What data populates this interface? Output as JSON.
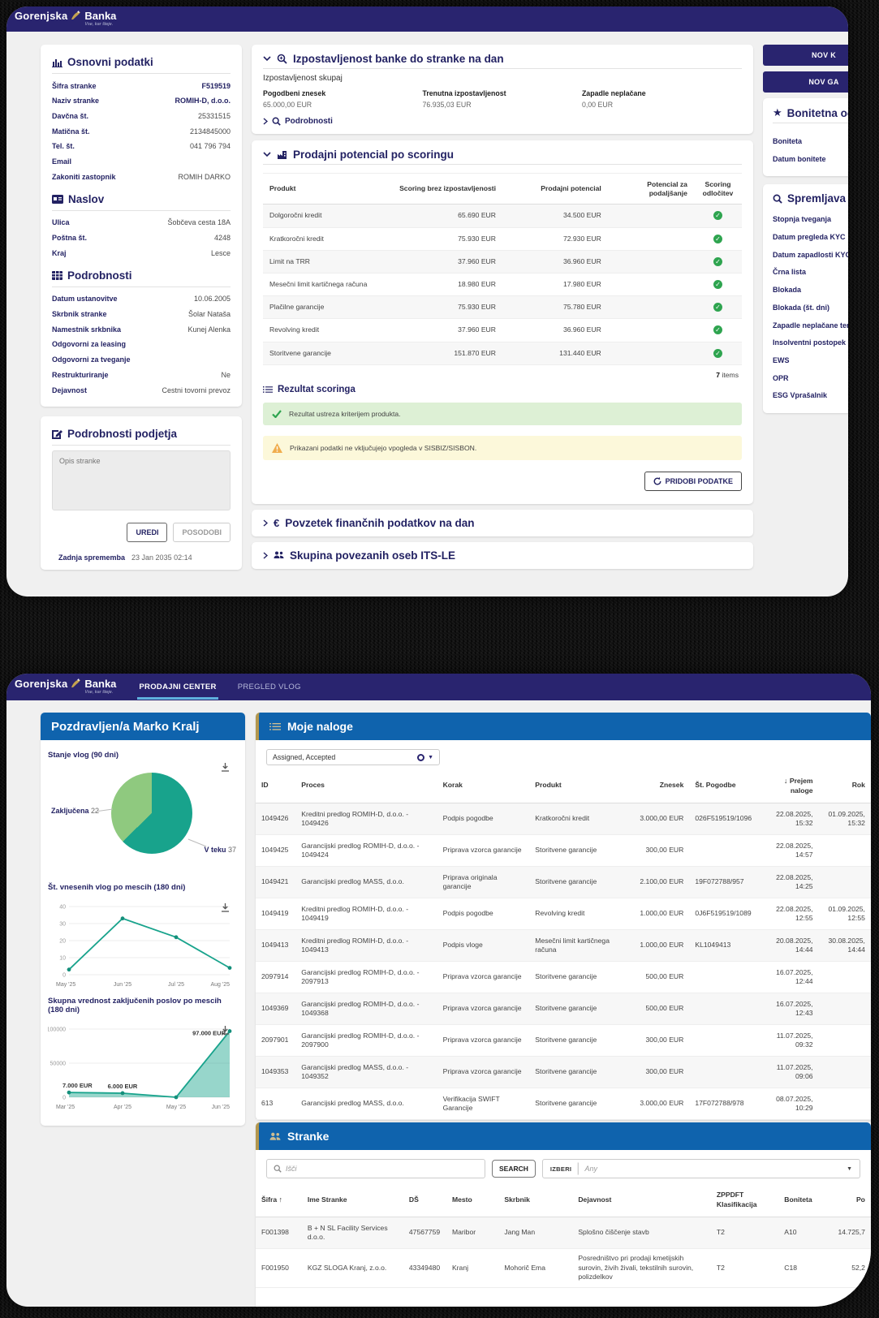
{
  "colors": {
    "navy": "#29246f",
    "heading": "#232263",
    "blue_header": "#0f63ad",
    "gold": "#b3974e",
    "teal": "#18a38c",
    "green": "#8fc97f",
    "success_bg": "#ddf0d5",
    "warning_bg": "#fcf8da",
    "check_green": "#2ea44f"
  },
  "brand": {
    "name1": "Gorenjska",
    "name2": "Banka",
    "tagline": "Vse, kar šteje."
  },
  "app1": {
    "osnovni": {
      "title": "Osnovni podatki",
      "fields": [
        {
          "l": "Šifra stranke",
          "v": "F519519",
          "b": true
        },
        {
          "l": "Naziv stranke",
          "v": "ROMIH-D, d.o.o.",
          "b": true
        },
        {
          "l": "Davčna št.",
          "v": "25331515"
        },
        {
          "l": "Matična št.",
          "v": "2134845000"
        },
        {
          "l": "Tel. št.",
          "v": "041 796 794"
        },
        {
          "l": "Email",
          "v": ""
        },
        {
          "l": "Zakoniti zastopnik",
          "v": "ROMIH DARKO"
        }
      ]
    },
    "naslov": {
      "title": "Naslov",
      "fields": [
        {
          "l": "Ulica",
          "v": "Šobčeva cesta 18A"
        },
        {
          "l": "Poštna št.",
          "v": "4248"
        },
        {
          "l": "Kraj",
          "v": "Lesce"
        }
      ]
    },
    "podrobnosti": {
      "title": "Podrobnosti",
      "fields": [
        {
          "l": "Datum ustanovitve",
          "v": "10.06.2005"
        },
        {
          "l": "Skrbnik stranke",
          "v": "Šolar Nataša"
        },
        {
          "l": "Namestnik srkbnika",
          "v": "Kunej Alenka"
        },
        {
          "l": "Odgovorni za leasing",
          "v": ""
        },
        {
          "l": "Odgovorni za tveganje",
          "v": ""
        },
        {
          "l": "Restrukturiranje",
          "v": "Ne"
        },
        {
          "l": "Dejavnost",
          "v": "Cestni tovorni prevoz"
        }
      ]
    },
    "podjetje": {
      "title": "Podrobnosti podjetja",
      "placeholder": "Opis stranke",
      "uredi": "UREDI",
      "posodobi": "POSODOBI",
      "zadnja_label": "Zadnja sprememba",
      "zadnja_value": "23 Jan 2035 02:14"
    },
    "izpostavljenost": {
      "title": "Izpostavljenost banke do stranke na dan",
      "subtitle": "Izpostavljenost skupaj",
      "stats": [
        {
          "label": "Pogodbeni znesek",
          "value": "65.000,00 EUR"
        },
        {
          "label": "Trenutna izpostavljenost",
          "value": "76.935,03 EUR"
        },
        {
          "label": "Zapadle neplačane",
          "value": "0,00 EUR"
        }
      ],
      "link": "Podrobnosti"
    },
    "scoring": {
      "title": "Prodajni potencial po scoringu",
      "headers": [
        "Produkt",
        "Scoring brez izpostavljenosti",
        "Prodajni potencial",
        "Potencial za podaljšanje",
        "Scoring odločitev"
      ],
      "rows": [
        {
          "produkt": "Dolgoročni kredit",
          "scoring": "65.690 EUR",
          "potencial": "34.500 EUR",
          "podaljsanje": "",
          "ok": true
        },
        {
          "produkt": "Kratkoročni kredit",
          "scoring": "75.930 EUR",
          "potencial": "72.930 EUR",
          "podaljsanje": "",
          "ok": true
        },
        {
          "produkt": "Limit na TRR",
          "scoring": "37.960 EUR",
          "potencial": "36.960 EUR",
          "podaljsanje": "",
          "ok": true
        },
        {
          "produkt": "Mesečni limit kartičnega računa",
          "scoring": "18.980 EUR",
          "potencial": "17.980 EUR",
          "podaljsanje": "",
          "ok": true
        },
        {
          "produkt": "Plačilne garancije",
          "scoring": "75.930 EUR",
          "potencial": "75.780 EUR",
          "podaljsanje": "",
          "ok": true
        },
        {
          "produkt": "Revolving kredit",
          "scoring": "37.960 EUR",
          "potencial": "36.960 EUR",
          "podaljsanje": "",
          "ok": true
        },
        {
          "produkt": "Storitvene garancije",
          "scoring": "151.870 EUR",
          "potencial": "131.440 EUR",
          "podaljsanje": "",
          "ok": true
        }
      ],
      "items_count": "7",
      "items_label": " items",
      "rezultat_title": "Rezultat scoringa",
      "success": "Rezultat ustreza kriterijem produkta.",
      "warning": "Prikazani podatki ne vključujejo vpogleda v SISBIZ/SISBON.",
      "button": "PRIDOBI PODATKE"
    },
    "povzetek_title": "Povzetek finančnih podatkov na dan",
    "skupina_title": "Skupina povezanih oseb ITS-LE",
    "sidebar": {
      "btn_kredit": "NOV K",
      "btn_garancija": "NOV GA",
      "boniteta": {
        "title": "Bonitetna oc",
        "fields": [
          "Boniteta",
          "Datum bonitete"
        ]
      },
      "spremljava": {
        "title": "Spremljava",
        "fields": [
          "Stopnja tveganja",
          "Datum pregleda KYC",
          "Datum zapadlosti KYC",
          "Črna lista",
          "Blokada",
          "Blokada (št. dni)",
          "Zapadle neplačane terjatve",
          "Insolventni postopek",
          "EWS",
          "OPR",
          "ESG Vprašalnik"
        ]
      }
    }
  },
  "app2": {
    "nav": {
      "tab1": "PRODAJNI CENTER",
      "tab2": "PREGLED VLOG"
    },
    "greeting": {
      "title": "Pozdravljen/a Marko Kralj"
    },
    "naloge": {
      "title": "Moje naloge",
      "filter_value": "Assigned, Accepted",
      "headers": [
        "ID",
        "Proces",
        "Korak",
        "Produkt",
        "Znesek",
        "Št. Pogodbe",
        "Prejem naloge",
        "Rok"
      ],
      "rows": [
        {
          "id": "1049426",
          "proces": "Kreditni predlog ROMIH-D, d.o.o. - 1049426",
          "korak": "Podpis pogodbe",
          "produkt": "Kratkoročni kredit",
          "znesek": "3.000,00 EUR",
          "pogodba": "026F519519/1096",
          "prejem": "22.08.2025, 15:32",
          "rok": "01.09.2025, 15:32"
        },
        {
          "id": "1049425",
          "proces": "Garancijski predlog ROMIH-D, d.o.o. - 1049424",
          "korak": "Priprava vzorca garancije",
          "produkt": "Storitvene garancije",
          "znesek": "300,00 EUR",
          "pogodba": "",
          "prejem": "22.08.2025, 14:57",
          "rok": ""
        },
        {
          "id": "1049421",
          "proces": "Garancijski predlog MASS, d.o.o.",
          "korak": "Priprava originala garancije",
          "produkt": "Storitvene garancije",
          "znesek": "2.100,00 EUR",
          "pogodba": "19F072788/957",
          "prejem": "22.08.2025, 14:25",
          "rok": ""
        },
        {
          "id": "1049419",
          "proces": "Kreditni predlog ROMIH-D, d.o.o. - 1049419",
          "korak": "Podpis pogodbe",
          "produkt": "Revolving kredit",
          "znesek": "1.000,00 EUR",
          "pogodba": "0J6F519519/1089",
          "prejem": "22.08.2025, 12:55",
          "rok": "01.09.2025, 12:55"
        },
        {
          "id": "1049413",
          "proces": "Kreditni predlog ROMIH-D, d.o.o. - 1049413",
          "korak": "Podpis vloge",
          "produkt": "Mesečni limit kartičnega računa",
          "znesek": "1.000,00 EUR",
          "pogodba": "KL1049413",
          "prejem": "20.08.2025, 14:44",
          "rok": "30.08.2025, 14:44"
        },
        {
          "id": "2097914",
          "proces": "Garancijski predlog ROMIH-D, d.o.o. - 2097913",
          "korak": "Priprava vzorca garancije",
          "produkt": "Storitvene garancije",
          "znesek": "500,00 EUR",
          "pogodba": "",
          "prejem": "16.07.2025, 12:44",
          "rok": ""
        },
        {
          "id": "1049369",
          "proces": "Garancijski predlog ROMIH-D, d.o.o. - 1049368",
          "korak": "Priprava vzorca garancije",
          "produkt": "Storitvene garancije",
          "znesek": "500,00 EUR",
          "pogodba": "",
          "prejem": "16.07.2025, 12:43",
          "rok": ""
        },
        {
          "id": "2097901",
          "proces": "Garancijski predlog ROMIH-D, d.o.o. - 2097900",
          "korak": "Priprava vzorca garancije",
          "produkt": "Storitvene garancije",
          "znesek": "300,00 EUR",
          "pogodba": "",
          "prejem": "11.07.2025, 09:32",
          "rok": ""
        },
        {
          "id": "1049353",
          "proces": "Garancijski predlog MASS, d.o.o. - 1049352",
          "korak": "Priprava vzorca garancije",
          "produkt": "Storitvene garancije",
          "znesek": "300,00 EUR",
          "pogodba": "",
          "prejem": "11.07.2025, 09:06",
          "rok": ""
        },
        {
          "id": "613",
          "proces": "Garancijski predlog MASS, d.o.o.",
          "korak": "Verifikacija SWIFT Garancije",
          "produkt": "Storitvene garancije",
          "znesek": "3.000,00 EUR",
          "pogodba": "17F072788/978",
          "prejem": "08.07.2025, 10:29",
          "rok": ""
        }
      ]
    },
    "stranke": {
      "title": "Stranke",
      "search_placeholder": "Išči",
      "search_button": "SEARCH",
      "izberi_label": "IZBERI",
      "izberi_placeholder": "Any",
      "headers": [
        "Šifra",
        "Ime Stranke",
        "DŠ",
        "Mesto",
        "Skrbnik",
        "Dejavnost",
        "ZPPDFT Klasifikacija",
        "Boniteta",
        "Po"
      ],
      "rows": [
        {
          "sifra": "F001398",
          "ime": "B + N SL Facility Services d.o.o.",
          "ds": "47567759",
          "mesto": "Maribor",
          "skrbnik": "Jang Man",
          "dejavnost": "Splošno čiščenje stavb",
          "zppdft": "T2",
          "boniteta": "A10",
          "p": "14.725,7"
        },
        {
          "sifra": "F001950",
          "ime": "KGZ SLOGA Kranj, z.o.o.",
          "ds": "43349480",
          "mesto": "Kranj",
          "skrbnik": "Mohorič Ema",
          "dejavnost": "Posredništvo pri prodaji kmetijskih surovin, živih živali, tekstilnih surovin, polizdelkov",
          "zppdft": "T2",
          "boniteta": "C18",
          "p": "52,2"
        }
      ]
    }
  },
  "chart_data": [
    {
      "type": "pie",
      "title": "Stanje vlog (90 dni)",
      "labels": [
        "V teku",
        "Zaključena"
      ],
      "values": [
        37,
        22
      ],
      "colors": [
        "#18a38c",
        "#8fc97f"
      ],
      "legend_position": "callout"
    },
    {
      "type": "line",
      "title": "Št. vnesenih vlog po mescih (180 dni)",
      "x": [
        "May '25",
        "Jun '25",
        "Jul '25",
        "Aug '25"
      ],
      "values": [
        3,
        33,
        22,
        4
      ],
      "ylim": [
        0,
        40
      ],
      "yticks": [
        0,
        10,
        20,
        30,
        40
      ],
      "grid": true
    },
    {
      "type": "area",
      "title": "Skupna vrednost zaključenih poslov po mescih (180 dni)",
      "x": [
        "Mar '25",
        "Apr '25",
        "May '25",
        "Jun '25"
      ],
      "values": [
        7000,
        6000,
        0,
        97000
      ],
      "ylim": [
        0,
        100000
      ],
      "yticks": [
        0,
        50000,
        100000
      ],
      "grid": true,
      "point_labels": [
        "7.000 EUR",
        "6.000 EUR",
        "",
        "97.000 EUR"
      ]
    }
  ]
}
